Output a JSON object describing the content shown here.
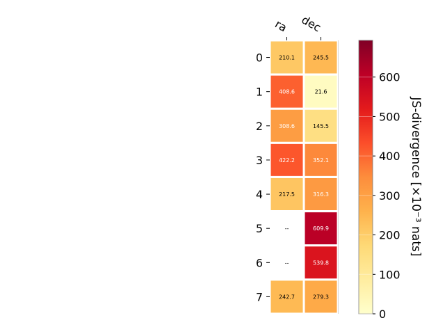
{
  "chart_data": {
    "type": "heatmap",
    "columns": [
      "ra",
      "dec"
    ],
    "rows": [
      "0",
      "1",
      "2",
      "3",
      "4",
      "5",
      "6",
      "7"
    ],
    "values": [
      [
        210.1,
        245.5
      ],
      [
        408.6,
        21.6
      ],
      [
        308.6,
        145.5
      ],
      [
        422.2,
        352.1
      ],
      [
        217.5,
        316.3
      ],
      [
        null,
        609.9
      ],
      [
        null,
        539.8
      ],
      [
        242.7,
        279.3
      ]
    ],
    "cell_labels": [
      [
        "210.1",
        "245.5"
      ],
      [
        "408.6",
        "21.6"
      ],
      [
        "308.6",
        "145.5"
      ],
      [
        "422.2",
        "352.1"
      ],
      [
        "217.5",
        "316.3"
      ],
      [
        "--",
        "609.9"
      ],
      [
        "--",
        "539.8"
      ],
      [
        "242.7",
        "279.3"
      ]
    ],
    "colorbar": {
      "label": "JS-divergence [×10⁻³ nats]",
      "range": [
        0,
        693
      ],
      "ticks": [
        "0",
        "100",
        "200",
        "300",
        "400",
        "500",
        "600"
      ],
      "tick_values": [
        0,
        100,
        200,
        300,
        400,
        500,
        600
      ],
      "colormap": "YlOrRd"
    }
  }
}
